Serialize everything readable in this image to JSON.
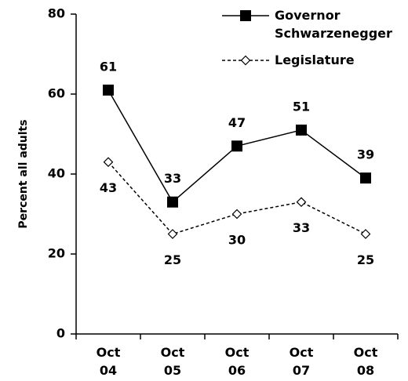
{
  "chart_data": {
    "type": "line",
    "y_label": "Percent all adults",
    "categories": [
      "Oct 04",
      "Oct 05",
      "Oct 06",
      "Oct 07",
      "Oct 08"
    ],
    "series": [
      {
        "name": "Governor Schwarzenegger",
        "color": "#000000",
        "marker": "square",
        "dash": "solid",
        "values": [
          61,
          33,
          47,
          51,
          39
        ]
      },
      {
        "name": "Legislature",
        "color": "#000000",
        "marker": "diamond",
        "dash": "dashed",
        "values": [
          43,
          25,
          30,
          33,
          25
        ]
      }
    ],
    "ylim": [
      0,
      80
    ],
    "yticks": [
      0,
      20,
      40,
      60,
      80
    ],
    "grid": false,
    "legend": "upper right"
  }
}
